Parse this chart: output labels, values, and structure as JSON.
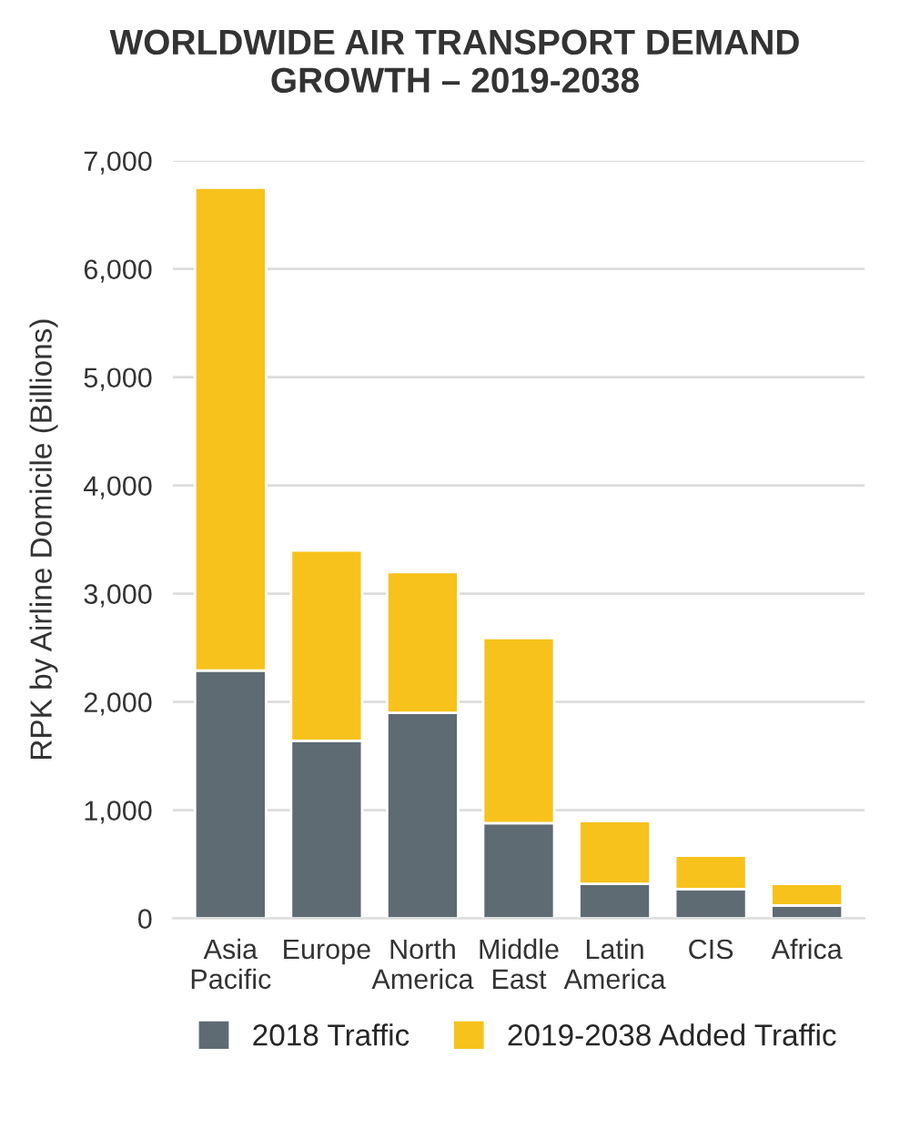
{
  "chart_data": {
    "type": "bar",
    "title": "WORLDWIDE AIR TRANSPORT DEMAND\nGROWTH – 2019-2038",
    "ylabel": "RPK by Airline Domicile (Billions)",
    "categories": [
      "Asia\nPacific",
      "Europe",
      "North\nAmerica",
      "Middle\nEast",
      "Latin\nAmerica",
      "CIS",
      "Africa"
    ],
    "stacked": true,
    "series": [
      {
        "name": "2018 Traffic",
        "color": "#5f6b73",
        "values": [
          2290,
          1640,
          1900,
          880,
          320,
          270,
          120
        ]
      },
      {
        "name": "2019-2038 Added Traffic",
        "color": "#f7c21b",
        "values": [
          4460,
          1760,
          1300,
          1710,
          580,
          310,
          200
        ]
      }
    ],
    "ylim": [
      0,
      7000
    ],
    "yticks": [
      {
        "value": 0,
        "label": "0"
      },
      {
        "value": 1000,
        "label": "1,000"
      },
      {
        "value": 2000,
        "label": "2,000"
      },
      {
        "value": 3000,
        "label": "3,000"
      },
      {
        "value": 4000,
        "label": "4,000"
      },
      {
        "value": 5000,
        "label": "5,000"
      },
      {
        "value": 6000,
        "label": "6,000"
      },
      {
        "value": 7000,
        "label": "7,000"
      }
    ],
    "grid": "y",
    "legend": "bottom"
  }
}
